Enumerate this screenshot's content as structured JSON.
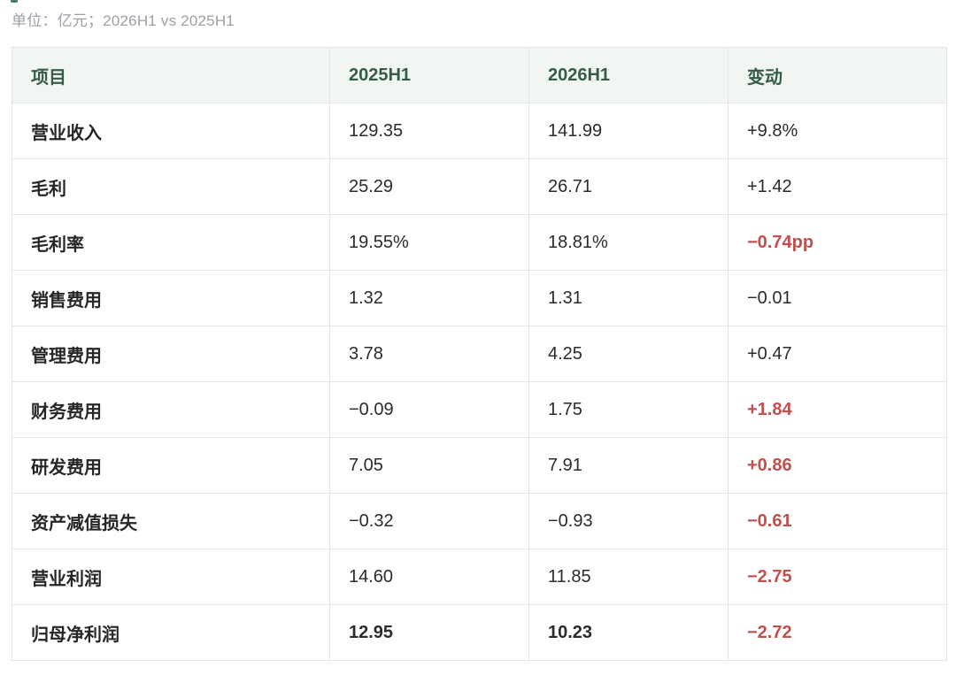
{
  "unit_note": "单位：亿元；2026H1 vs 2025H1",
  "colors": {
    "header_text": "#355c44",
    "header_bg": "#f1f6f2",
    "highlight_red": "#c0504d",
    "accent": "#4e7a5f"
  },
  "table": {
    "headers": [
      "项目",
      "2025H1",
      "2026H1",
      "变动"
    ],
    "rows": [
      {
        "item": "营业收入",
        "h2025": "129.35",
        "h2026": "141.99",
        "change": "+9.8%",
        "highlight": false,
        "bold": false
      },
      {
        "item": "毛利",
        "h2025": "25.29",
        "h2026": "26.71",
        "change": "+1.42",
        "highlight": false,
        "bold": false
      },
      {
        "item": "毛利率",
        "h2025": "19.55%",
        "h2026": "18.81%",
        "change": "−0.74pp",
        "highlight": true,
        "bold": false
      },
      {
        "item": "销售费用",
        "h2025": "1.32",
        "h2026": "1.31",
        "change": "−0.01",
        "highlight": false,
        "bold": false
      },
      {
        "item": "管理费用",
        "h2025": "3.78",
        "h2026": "4.25",
        "change": "+0.47",
        "highlight": false,
        "bold": false
      },
      {
        "item": "财务费用",
        "h2025": "−0.09",
        "h2026": "1.75",
        "change": "+1.84",
        "highlight": true,
        "bold": false
      },
      {
        "item": "研发费用",
        "h2025": "7.05",
        "h2026": "7.91",
        "change": "+0.86",
        "highlight": true,
        "bold": false
      },
      {
        "item": "资产减值损失",
        "h2025": "−0.32",
        "h2026": "−0.93",
        "change": "−0.61",
        "highlight": true,
        "bold": false
      },
      {
        "item": "营业利润",
        "h2025": "14.60",
        "h2026": "11.85",
        "change": "−2.75",
        "highlight": true,
        "bold": false
      },
      {
        "item": "归母净利润",
        "h2025": "12.95",
        "h2026": "10.23",
        "change": "−2.72",
        "highlight": true,
        "bold": true
      }
    ]
  }
}
